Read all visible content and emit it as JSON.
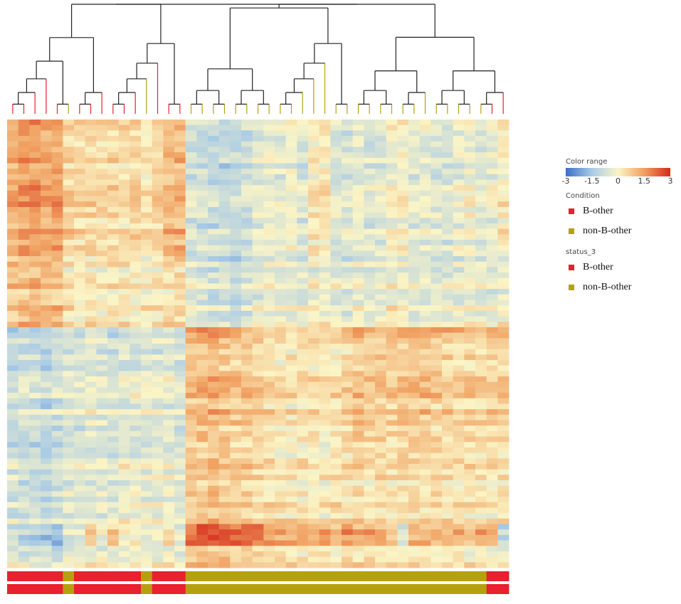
{
  "chart_data": {
    "type": "heatmap",
    "title": "",
    "n_samples": 45,
    "color_range": {
      "label": "Color range",
      "min": -3,
      "max": 3,
      "ticks": [
        "-3",
        "-1.5",
        "0",
        "1.5",
        "3"
      ],
      "colors": [
        "#3b6fc6",
        "#a9cbe6",
        "#fbf5c6",
        "#f0a060",
        "#d62a1c"
      ]
    },
    "condition": {
      "title": "Condition",
      "values": [
        "B-other",
        "B-other",
        "B-other",
        "B-other",
        "B-other",
        "non-B-other",
        "B-other",
        "B-other",
        "B-other",
        "B-other",
        "B-other",
        "B-other",
        "non-B-other",
        "B-other",
        "B-other",
        "B-other",
        "non-B-other",
        "non-B-other",
        "non-B-other",
        "non-B-other",
        "non-B-other",
        "non-B-other",
        "non-B-other",
        "non-B-other",
        "non-B-other",
        "non-B-other",
        "non-B-other",
        "non-B-other",
        "non-B-other",
        "non-B-other",
        "non-B-other",
        "non-B-other",
        "non-B-other",
        "non-B-other",
        "non-B-other",
        "non-B-other",
        "non-B-other",
        "non-B-other",
        "non-B-other",
        "non-B-other",
        "non-B-other",
        "non-B-other",
        "non-B-other",
        "B-other",
        "B-other"
      ]
    },
    "status": {
      "title": "status_3",
      "values": [
        "B-other",
        "B-other",
        "B-other",
        "B-other",
        "B-other",
        "non-B-other",
        "B-other",
        "B-other",
        "B-other",
        "B-other",
        "B-other",
        "B-other",
        "non-B-other",
        "B-other",
        "B-other",
        "B-other",
        "non-B-other",
        "non-B-other",
        "non-B-other",
        "non-B-other",
        "non-B-other",
        "non-B-other",
        "non-B-other",
        "non-B-other",
        "non-B-other",
        "non-B-other",
        "non-B-other",
        "non-B-other",
        "non-B-other",
        "non-B-other",
        "non-B-other",
        "non-B-other",
        "non-B-other",
        "non-B-other",
        "non-B-other",
        "non-B-other",
        "non-B-other",
        "non-B-other",
        "non-B-other",
        "non-B-other",
        "non-B-other",
        "non-B-other",
        "non-B-other",
        "B-other",
        "B-other"
      ]
    },
    "category_colors": {
      "B-other": "#e8202f",
      "non-B-other": "#b5a10f"
    },
    "legend": [
      {
        "title": "Condition",
        "items": [
          "B-other",
          "non-B-other"
        ]
      },
      {
        "title": "status_3",
        "items": [
          "B-other",
          "non-B-other"
        ]
      }
    ],
    "row_blocks": [
      {
        "rows": 26,
        "profile": [
          1.2,
          1.5,
          1.6,
          1.3,
          1.4,
          0.6,
          0.5,
          0.5,
          0.5,
          0.6,
          0.4,
          0.6,
          0.3,
          0.6,
          1.0,
          1.1,
          -0.7,
          -0.8,
          -0.9,
          -1.0,
          -0.9,
          -0.8,
          -0.5,
          -0.3,
          -0.4,
          -0.2,
          -0.5,
          0.2,
          0.3,
          -0.5,
          -0.6,
          -0.3,
          -0.5,
          -0.4,
          -0.1,
          0.0,
          -0.4,
          -0.3,
          -0.5,
          -0.6,
          -0.3,
          -0.2,
          -0.4,
          -0.3,
          0.1
        ]
      },
      {
        "rows": 12,
        "profile": [
          0.9,
          1.0,
          1.2,
          1.1,
          1.0,
          0.3,
          0.2,
          0.3,
          0.2,
          0.4,
          0.3,
          0.2,
          0.1,
          0.3,
          0.5,
          0.6,
          -0.4,
          -0.5,
          -0.6,
          -0.7,
          -0.8,
          -0.6,
          -0.4,
          -0.2,
          -0.3,
          -0.2,
          -0.3,
          -0.1,
          0.0,
          -0.3,
          -0.4,
          -0.2,
          -0.3,
          -0.3,
          0.0,
          -0.1,
          -0.3,
          -0.2,
          -0.3,
          -0.4,
          -0.2,
          -0.1,
          -0.2,
          -0.2,
          0.0
        ]
      },
      {
        "rows": 2,
        "profile": [
          -1.5,
          -1.2,
          -1.3,
          -1.4,
          -1.2,
          -0.8,
          -0.9,
          -0.7,
          -0.8,
          -1.0,
          -0.6,
          -0.7,
          -0.9,
          -0.8,
          -0.7,
          -0.9,
          1.3,
          1.5,
          1.6,
          1.4,
          1.2,
          1.0,
          0.8,
          0.6,
          0.5,
          0.4,
          0.6,
          0.5,
          0.4,
          0.7,
          0.9,
          1.4,
          1.3,
          1.2,
          1.0,
          1.3,
          1.5,
          1.4,
          1.2,
          1.1,
          1.0,
          1.2,
          0.9,
          1.0,
          1.2
        ]
      },
      {
        "rows": 22,
        "profile": [
          -0.9,
          -0.8,
          -0.9,
          -1.0,
          -0.8,
          -0.5,
          -0.6,
          -0.4,
          -0.5,
          -0.6,
          -0.4,
          -0.4,
          -0.5,
          -0.5,
          -0.4,
          -0.5,
          0.9,
          1.0,
          1.1,
          0.9,
          0.8,
          0.7,
          0.6,
          0.4,
          0.3,
          0.2,
          0.3,
          0.3,
          0.2,
          0.4,
          0.5,
          0.8,
          0.7,
          0.7,
          0.6,
          0.8,
          0.9,
          0.8,
          0.7,
          0.6,
          0.5,
          0.6,
          0.5,
          0.5,
          0.6
        ]
      },
      {
        "rows": 12,
        "profile": [
          -0.6,
          -0.7,
          -0.8,
          -0.9,
          -0.7,
          -0.3,
          -0.4,
          -0.2,
          -0.3,
          -0.3,
          -0.2,
          -0.2,
          -0.2,
          -0.3,
          -0.2,
          -0.3,
          0.7,
          0.9,
          1.0,
          0.8,
          0.7,
          0.8,
          0.6,
          0.4,
          0.3,
          0.3,
          0.3,
          0.2,
          0.2,
          0.3,
          0.3,
          0.5,
          0.4,
          0.4,
          0.3,
          0.5,
          0.5,
          0.4,
          0.4,
          0.3,
          0.3,
          0.3,
          0.3,
          0.2,
          0.3
        ]
      },
      {
        "rows": 4,
        "profile": [
          -1.0,
          -1.4,
          -1.6,
          -1.8,
          -2.0,
          -0.8,
          -0.5,
          0.4,
          -0.6,
          0.5,
          -0.4,
          -0.2,
          -0.6,
          -0.5,
          0.2,
          -0.6,
          1.8,
          2.2,
          2.2,
          2.1,
          2.0,
          1.9,
          1.8,
          1.2,
          1.0,
          1.1,
          0.9,
          1.0,
          1.2,
          0.8,
          1.3,
          1.0,
          1.1,
          0.9,
          0.7,
          -0.8,
          0.9,
          1.0,
          0.8,
          0.6,
          0.9,
          0.7,
          1.0,
          0.6,
          -1.2
        ]
      },
      {
        "rows": 4,
        "profile": [
          -0.3,
          -0.4,
          -0.5,
          -0.6,
          -0.7,
          -0.2,
          -0.1,
          0.0,
          -0.1,
          0.0,
          -0.1,
          0.0,
          -0.1,
          -0.1,
          0.0,
          -0.1,
          0.9,
          1.0,
          1.1,
          1.0,
          0.9,
          0.8,
          0.7,
          0.5,
          0.4,
          0.4,
          0.3,
          0.4,
          0.5,
          0.3,
          0.5,
          0.4,
          0.4,
          0.3,
          0.3,
          0.1,
          0.3,
          0.3,
          0.3,
          0.2,
          0.3,
          0.2,
          0.3,
          0.2,
          0.0
        ]
      }
    ]
  }
}
